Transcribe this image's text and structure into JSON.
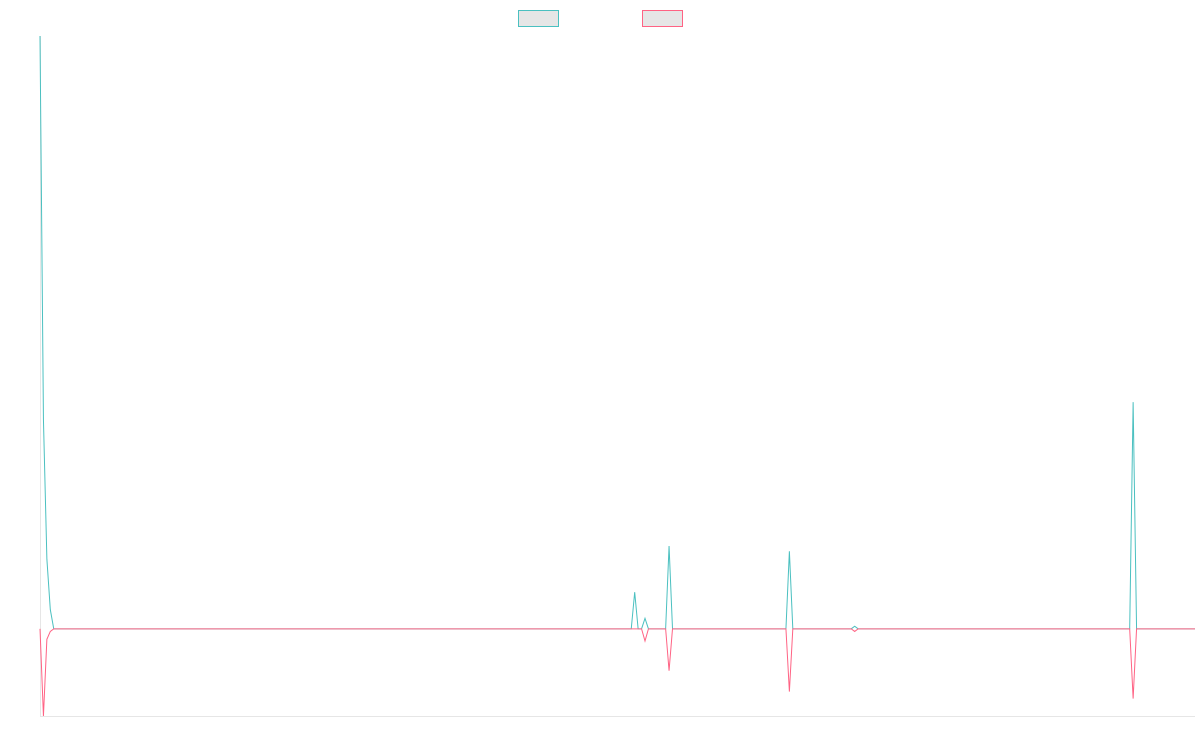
{
  "chart_data": {
    "type": "line",
    "title": "",
    "xlabel": "",
    "ylabel": "",
    "grid": false,
    "legend_position": "top-center",
    "x_count": 337,
    "ylim": [
      -100,
      680
    ],
    "series": [
      {
        "key": "series_1",
        "color": "#4bc0c0",
        "legend_fill": "#e6e6e6",
        "points": [
          [
            0,
            680
          ],
          [
            1,
            240
          ],
          [
            2,
            80
          ],
          [
            3,
            22
          ],
          [
            4,
            0
          ],
          [
            172,
            0
          ],
          [
            173,
            42
          ],
          [
            174,
            0
          ],
          [
            175,
            0
          ],
          [
            176,
            12
          ],
          [
            177,
            0
          ],
          [
            182,
            0
          ],
          [
            183,
            95
          ],
          [
            184,
            0
          ],
          [
            217,
            0
          ],
          [
            218,
            89
          ],
          [
            219,
            0
          ],
          [
            236,
            0
          ],
          [
            237,
            3
          ],
          [
            238,
            0
          ],
          [
            317,
            0
          ],
          [
            318,
            260
          ],
          [
            319,
            0
          ],
          [
            336,
            0
          ]
        ]
      },
      {
        "key": "series_2",
        "color": "#ff6384",
        "legend_fill": "#e6e6e6",
        "points": [
          [
            0,
            0
          ],
          [
            1,
            -100
          ],
          [
            2,
            -12
          ],
          [
            3,
            -3
          ],
          [
            4,
            0
          ],
          [
            175,
            0
          ],
          [
            176,
            -14
          ],
          [
            177,
            0
          ],
          [
            182,
            0
          ],
          [
            183,
            -48
          ],
          [
            184,
            0
          ],
          [
            217,
            0
          ],
          [
            218,
            -72
          ],
          [
            219,
            0
          ],
          [
            236,
            0
          ],
          [
            237,
            -3
          ],
          [
            238,
            0
          ],
          [
            317,
            0
          ],
          [
            318,
            -80
          ],
          [
            319,
            0
          ],
          [
            336,
            0
          ]
        ]
      }
    ]
  }
}
